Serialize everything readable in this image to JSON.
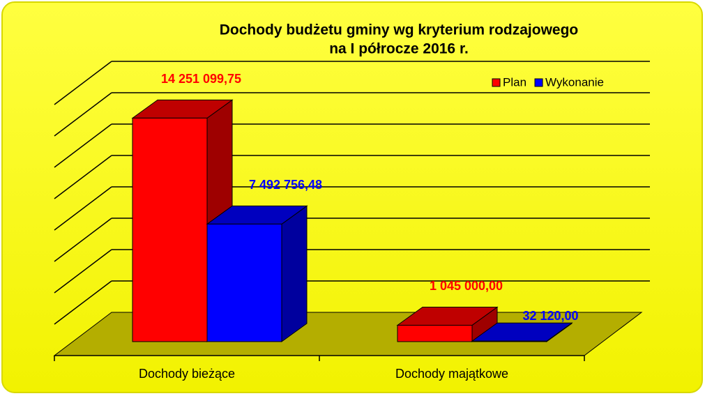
{
  "chart_data": {
    "type": "bar3d",
    "title": [
      "Dochody budżetu gminy wg kryterium rodzajowego",
      "na I półrocze 2016 r."
    ],
    "categories": [
      "Dochody bieżące",
      "Dochody majątkowe"
    ],
    "series": [
      {
        "name": "Plan",
        "color": "#ff0000",
        "values": [
          14251099.75,
          1045000.0
        ],
        "value_labels": [
          "14 251 099,75",
          "1 045 000,00"
        ]
      },
      {
        "name": "Wykonanie",
        "color": "#0000ff",
        "values": [
          7492756.48,
          32120.0
        ],
        "value_labels": [
          "7 492 756,48",
          "32 120,00"
        ]
      }
    ],
    "ylim": [
      0,
      16000000
    ],
    "yticks": [
      0,
      2000000,
      4000000,
      6000000,
      8000000,
      10000000,
      12000000,
      14000000,
      16000000
    ],
    "grid": true,
    "legend": "top-right"
  }
}
